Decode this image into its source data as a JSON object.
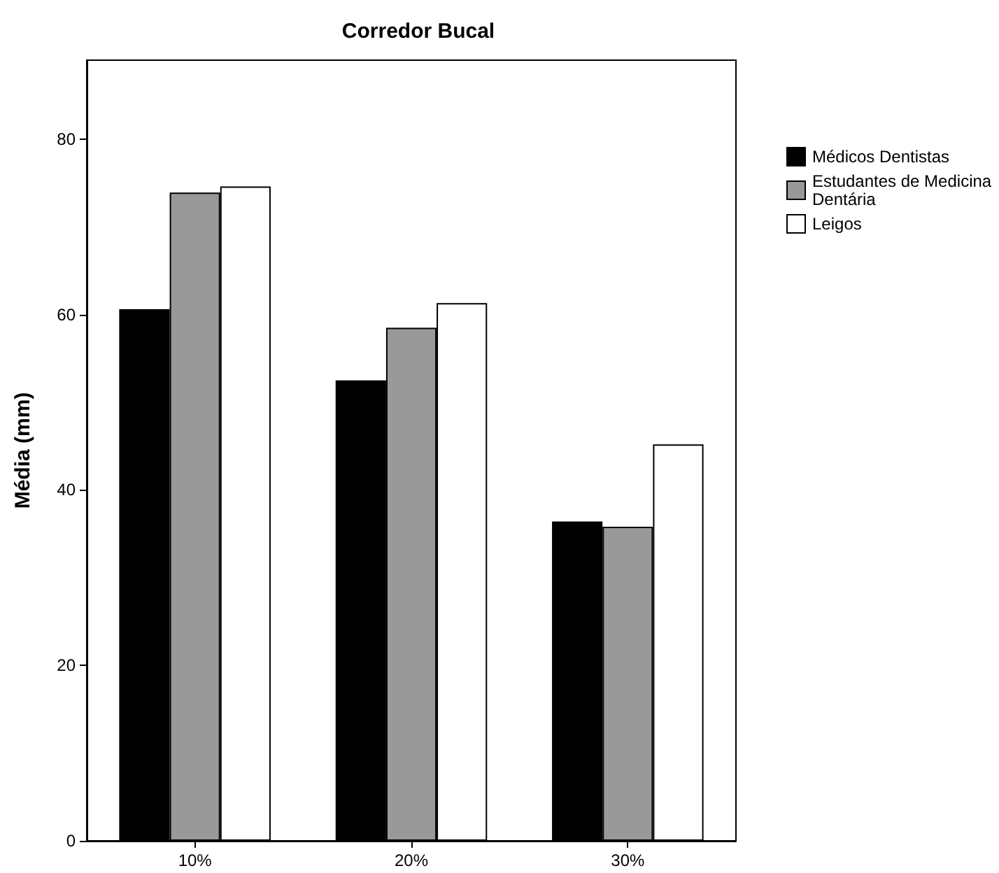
{
  "chart_data": {
    "type": "bar",
    "title": "Corredor Bucal",
    "ylabel": "Média (mm)",
    "categories": [
      "10%",
      "20%",
      "30%"
    ],
    "series": [
      {
        "name": "Médicos Dentistas",
        "color": "#000000",
        "values": [
          60.6,
          52.5,
          36.4
        ]
      },
      {
        "name": "Estudantes de Medicina Dentária",
        "color": "#999999",
        "values": [
          73.9,
          58.5,
          35.8
        ]
      },
      {
        "name": "Leigos",
        "color": "#ffffff",
        "values": [
          74.6,
          61.3,
          45.2
        ]
      }
    ],
    "ylim": [
      0,
      89
    ],
    "yticks": [
      0,
      20,
      40,
      60,
      80
    ],
    "grid": false,
    "legend": "top right"
  }
}
